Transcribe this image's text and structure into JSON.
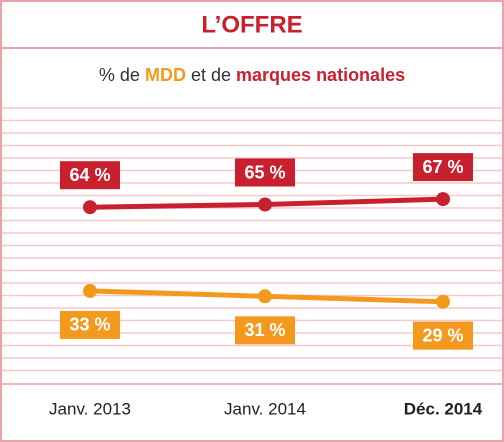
{
  "chart_data": {
    "type": "line",
    "title": "L’OFFRE",
    "subtitle_parts": [
      "% de",
      "MDD",
      "et de",
      "marques nationales"
    ],
    "subtitle_colors": [
      "#333333",
      "#f39a1e",
      "#333333",
      "#c8202f"
    ],
    "categories": [
      "Janv. 2013",
      "Janv. 2014",
      "Déc. 2014"
    ],
    "series": [
      {
        "color": "#c8202f",
        "values": [
          64,
          65,
          67
        ],
        "value_labels": [
          "64 %",
          "65 %",
          "67 %"
        ],
        "label_position": "above"
      },
      {
        "color": "#f39a1e",
        "values": [
          33,
          31,
          29
        ],
        "value_labels": [
          "33 %",
          "31 %",
          "29 %"
        ],
        "label_position": "below"
      }
    ],
    "ylim": [
      0,
      100
    ]
  }
}
